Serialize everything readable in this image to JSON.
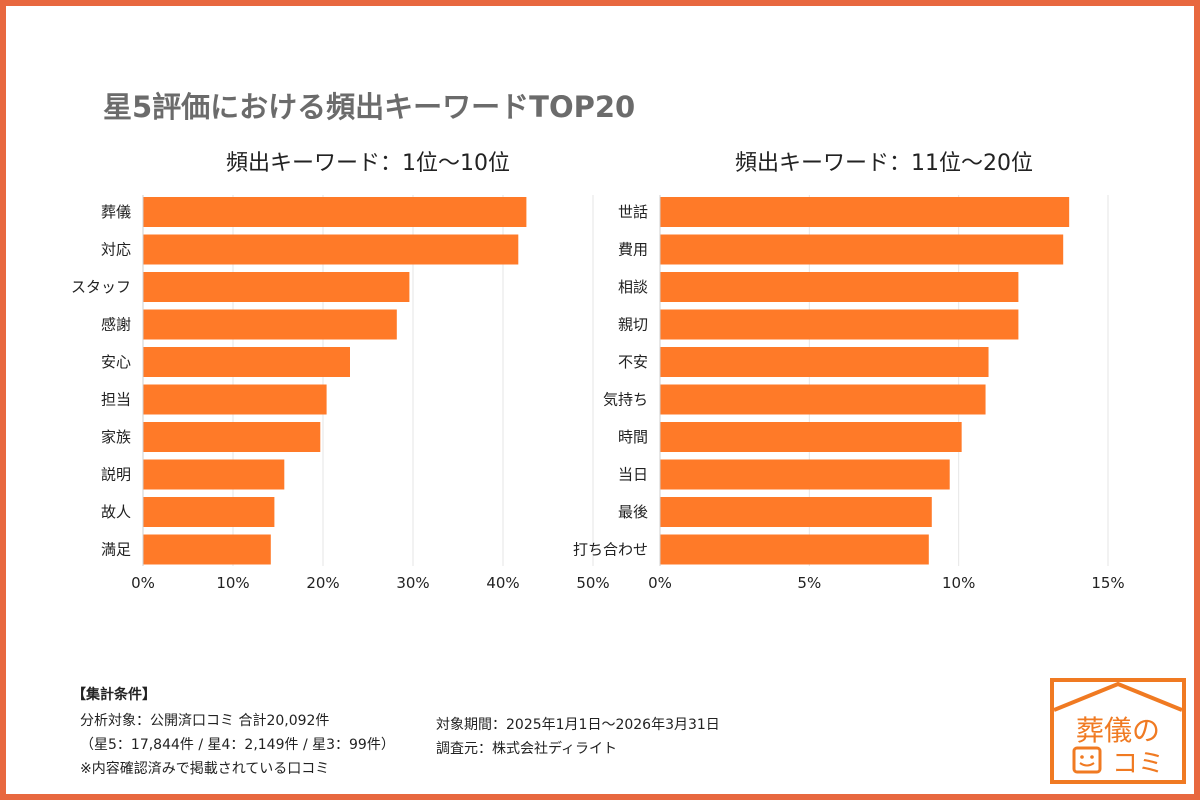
{
  "title": "星5評価における頻出キーワードTOP20",
  "chart_data": [
    {
      "type": "bar",
      "orientation": "horizontal",
      "title": "頻出キーワード：1位〜10位",
      "categories": [
        "葬儀",
        "対応",
        "スタッフ",
        "感謝",
        "安心",
        "担当",
        "家族",
        "説明",
        "故人",
        "満足"
      ],
      "values": [
        42.6,
        41.7,
        29.6,
        28.2,
        23.0,
        20.4,
        19.7,
        15.7,
        14.6,
        14.2
      ],
      "unit": "%",
      "xlim": [
        0,
        50
      ],
      "ticks": [
        "0%",
        "10%",
        "20%",
        "30%",
        "40%",
        "50%"
      ],
      "tick_values": [
        0,
        10,
        20,
        30,
        40,
        50
      ],
      "grid": true,
      "color": "#FF7A28"
    },
    {
      "type": "bar",
      "orientation": "horizontal",
      "title": "頻出キーワード：11位〜20位",
      "categories": [
        "世話",
        "費用",
        "相談",
        "親切",
        "不安",
        "気持ち",
        "時間",
        "当日",
        "最後",
        "打ち合わせ"
      ],
      "values": [
        13.7,
        13.5,
        12.0,
        12.0,
        11.0,
        10.9,
        10.1,
        9.7,
        9.1,
        9.0
      ],
      "unit": "%",
      "xlim": [
        0,
        15
      ],
      "ticks": [
        "0%",
        "5%",
        "10%",
        "15%"
      ],
      "tick_values": [
        0,
        5,
        10,
        15
      ],
      "grid": true,
      "color": "#FF7A28"
    }
  ],
  "footer": {
    "heading": "【集計条件】",
    "line1": "分析対象：公開済口コミ 合計20,092件",
    "line2": "（星5：17,844件 / 星4：2,149件 / 星3：99件）",
    "line3": "※内容確認済みで掲載されている口コミ",
    "period": "対象期間：2025年1月1日〜2026年3月31日",
    "source": "調査元：株式会社ディライト"
  },
  "logo": {
    "text": "葬儀の口コミ",
    "color": "#F07A22"
  },
  "colors": {
    "border": "#E8683F",
    "bar": "#FF7A28"
  }
}
